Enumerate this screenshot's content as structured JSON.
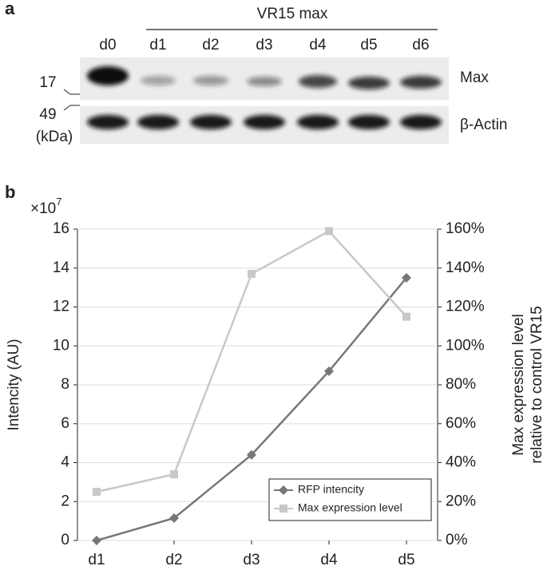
{
  "blot": {
    "panel_label": "a",
    "group_label": "VR15 max",
    "lanes": [
      "d0",
      "d1",
      "d2",
      "d3",
      "d4",
      "d5",
      "d6"
    ],
    "row_labels": [
      "Max",
      "β-Actin"
    ],
    "markers": [
      "17",
      "49"
    ],
    "marker_unit": "(kDa)"
  },
  "chart_data": {
    "type": "line",
    "panel_label": "b",
    "y_multiplier": "×10",
    "y_multiplier_exponent": "7",
    "y_label": "Intencity (AU)",
    "y2_label": [
      "Max expression level",
      "relative to control VR15"
    ],
    "categories": [
      "d1",
      "d2",
      "d3",
      "d4",
      "d5"
    ],
    "ylim": [
      0,
      16
    ],
    "yticks": [
      0,
      2,
      4,
      6,
      8,
      10,
      12,
      14,
      16
    ],
    "y2lim": [
      0,
      160
    ],
    "y2ticks": [
      {
        "value": 0,
        "label": "0%"
      },
      {
        "value": 20,
        "label": "20%"
      },
      {
        "value": 40,
        "label": "40%"
      },
      {
        "value": 60,
        "label": "60%"
      },
      {
        "value": 80,
        "label": "80%"
      },
      {
        "value": 100,
        "label": "100%"
      },
      {
        "value": 120,
        "label": "120%"
      },
      {
        "value": 140,
        "label": "140%"
      },
      {
        "value": 160,
        "label": "160%"
      }
    ],
    "series": [
      {
        "name": "RFP intencity",
        "color": "#777777",
        "marker": "diamond",
        "values": [
          0,
          1.15,
          4.4,
          8.7,
          13.5
        ]
      },
      {
        "name": "Max expression level",
        "color": "#c8c8c8",
        "marker": "square",
        "axis": "y2",
        "values": [
          25,
          34,
          137,
          159,
          115
        ]
      }
    ],
    "legend": "lower right"
  }
}
